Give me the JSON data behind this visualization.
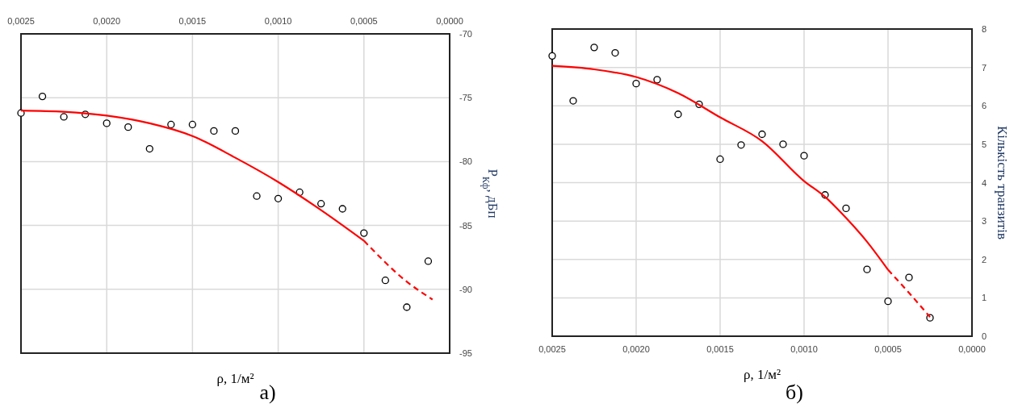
{
  "chart_data": [
    {
      "type": "scatter",
      "xlabel": "ρ,  1/м²",
      "ylabel": "P$_{Кф}$,  дБп",
      "annotations": [
        "а)"
      ],
      "xlim": [
        0.0025,
        0.0
      ],
      "xticks": [
        {
          "value": 0.0025,
          "label": "0,0025"
        },
        {
          "value": 0.002,
          "label": "0,0020"
        },
        {
          "value": 0.0015,
          "label": "0,0015"
        },
        {
          "value": 0.001,
          "label": "0,0010"
        },
        {
          "value": 0.0005,
          "label": "0,0005"
        },
        {
          "value": 0.0,
          "label": "0,0000"
        }
      ],
      "ylim": [
        -95,
        -70
      ],
      "yticks": [
        -95,
        -90,
        -85,
        -80,
        -75,
        -70
      ],
      "grid": true,
      "series": [
        {
          "type": "scatter",
          "marker": "circle",
          "color": "#000000",
          "x": [
            0.0025,
            0.002375,
            0.00225,
            0.002125,
            0.002,
            0.001875,
            0.00175,
            0.001625,
            0.0015,
            0.001375,
            0.00125,
            0.001125,
            0.001,
            0.000875,
            0.00075,
            0.000625,
            0.0005,
            0.000375,
            0.00025,
            0.000125
          ],
          "values": [
            -76.2,
            -74.9,
            -76.5,
            -76.3,
            -77.0,
            -77.3,
            -79.0,
            -77.1,
            -77.1,
            -77.6,
            -77.6,
            -82.7,
            -82.9,
            -82.4,
            -83.3,
            -83.7,
            -85.6,
            -89.3,
            -91.4,
            -87.8
          ]
        },
        {
          "type": "line",
          "line_style": "solid",
          "color": "#ff0000",
          "x": [
            0.0025,
            0.00225,
            0.002,
            0.00175,
            0.0015,
            0.00125,
            0.001,
            0.00075,
            0.0005
          ],
          "values": [
            -76.0,
            -76.1,
            -76.4,
            -77.0,
            -78.0,
            -79.7,
            -81.6,
            -83.8,
            -86.2
          ]
        },
        {
          "type": "line",
          "line_style": "dashed",
          "color": "#ff0000",
          "x": [
            0.0005,
            0.00025,
            0.0001
          ],
          "values": [
            -86.2,
            -89.4,
            -90.8
          ]
        }
      ]
    },
    {
      "type": "scatter",
      "xlabel": "ρ,  1/м²",
      "ylabel": "Кількість транзитів",
      "annotations": [
        "б)"
      ],
      "xlim": [
        0.0025,
        0.0
      ],
      "xticks": [
        {
          "value": 0.0025,
          "label": "0,0025"
        },
        {
          "value": 0.002,
          "label": "0,0020"
        },
        {
          "value": 0.0015,
          "label": "0,0015"
        },
        {
          "value": 0.001,
          "label": "0,0010"
        },
        {
          "value": 0.0005,
          "label": "0,0005"
        },
        {
          "value": 0.0,
          "label": "0,0000"
        }
      ],
      "ylim": [
        0,
        8
      ],
      "yticks": [
        0,
        1,
        2,
        3,
        4,
        5,
        6,
        7,
        8
      ],
      "grid": true,
      "series": [
        {
          "type": "scatter",
          "marker": "circle",
          "color": "#000000",
          "x": [
            0.0025,
            0.002375,
            0.00225,
            0.002125,
            0.002,
            0.001875,
            0.00175,
            0.001625,
            0.0015,
            0.001375,
            0.00125,
            0.001125,
            0.001,
            0.000875,
            0.00075,
            0.000625,
            0.0005,
            0.000375,
            0.00025
          ],
          "values": [
            7.3,
            6.13,
            7.52,
            7.38,
            6.58,
            6.68,
            5.78,
            6.04,
            4.61,
            4.98,
            5.26,
            5.0,
            4.7,
            3.68,
            3.33,
            1.74,
            0.91,
            1.53,
            0.48
          ]
        },
        {
          "type": "line",
          "line_style": "solid",
          "color": "#ff0000",
          "x": [
            0.0025,
            0.00225,
            0.002,
            0.00175,
            0.0015,
            0.00125,
            0.001,
            0.000875,
            0.00075,
            0.000625,
            0.0005
          ],
          "values": [
            7.04,
            6.95,
            6.75,
            6.33,
            5.7,
            5.08,
            4.04,
            3.63,
            3.08,
            2.46,
            1.73
          ]
        },
        {
          "type": "line",
          "line_style": "dashed",
          "color": "#ff0000",
          "x": [
            0.0005,
            0.000375,
            0.00025
          ],
          "values": [
            1.73,
            1.13,
            0.5
          ]
        }
      ]
    }
  ]
}
